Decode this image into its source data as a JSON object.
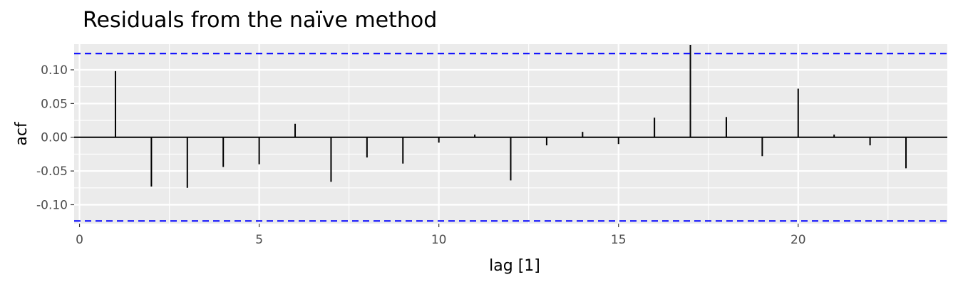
{
  "chart_data": {
    "type": "bar",
    "title": "Residuals from the naïve method",
    "xlabel": "lag [1]",
    "ylabel": "acf",
    "xlim": [
      -0.15,
      24.15
    ],
    "ylim": [
      -0.128,
      0.138
    ],
    "x_ticks": [
      0,
      5,
      10,
      15,
      20
    ],
    "x_tick_labels": [
      "0",
      "5",
      "10",
      "15",
      "20"
    ],
    "y_ticks": [
      -0.1,
      -0.05,
      0.0,
      0.05,
      0.1
    ],
    "y_tick_labels": [
      "-0.10",
      "-0.05",
      "0.00",
      "0.05",
      "0.10"
    ],
    "lags": [
      1,
      2,
      3,
      4,
      5,
      6,
      7,
      8,
      9,
      10,
      11,
      12,
      13,
      14,
      15,
      16,
      17,
      18,
      19,
      20,
      21,
      22,
      23
    ],
    "values": [
      0.098,
      -0.073,
      -0.075,
      -0.044,
      -0.04,
      0.02,
      -0.066,
      -0.03,
      -0.039,
      -0.008,
      0.004,
      -0.064,
      -0.012,
      0.008,
      -0.01,
      0.029,
      0.137,
      0.03,
      -0.028,
      0.072,
      0.004,
      -0.012,
      -0.046
    ],
    "confidence_bounds": [
      0.124,
      -0.124
    ],
    "grid": true,
    "colors": {
      "panel_background": "#ebebeb",
      "grid": "#ffffff",
      "bars": "#000000",
      "zero_line": "#000000",
      "bounds": "#0000ff"
    }
  }
}
